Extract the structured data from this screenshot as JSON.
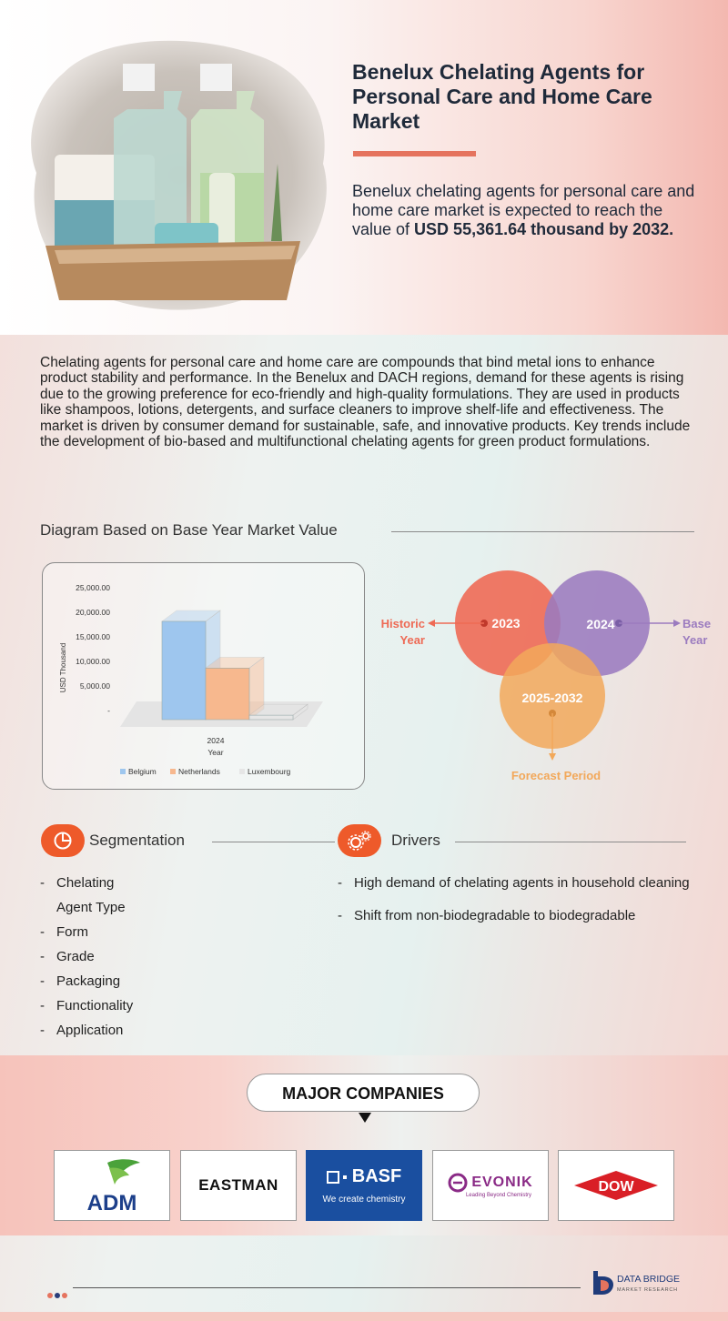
{
  "hero": {
    "title": "Benelux Chelating Agents for Personal Care and Home Care Market",
    "desc_prefix": "Benelux chelating agents for personal care and home care market is expected to reach the value of ",
    "desc_bold": "USD  55,361.64 thousand by 2032."
  },
  "intro": "Chelating agents for personal care and home care are compounds that bind metal ions to enhance product stability and performance. In the Benelux and DACH regions, demand for these agents is rising due to the growing preference for eco-friendly and high-quality formulations. They are used in products like shampoos, lotions, detergents, and surface cleaners to improve shelf-life and effectiveness. The market is driven by consumer demand for sustainable, safe, and innovative products. Key trends include the development of bio-based and multifunctional chelating agents for green product formulations.",
  "diagram_title": "Diagram Based on Base Year Market Value",
  "chart_data": {
    "type": "bar",
    "categories": [
      "2024"
    ],
    "series": [
      {
        "name": "Belgium",
        "values": [
          20000
        ],
        "color": "#9ec6ee"
      },
      {
        "name": "Netherlands",
        "values": [
          10500
        ],
        "color": "#f7b88e"
      },
      {
        "name": "Luxembourg",
        "values": [
          900
        ],
        "color": "#e6e6e6"
      }
    ],
    "xlabel": "Year",
    "ylabel": "USD Thousand",
    "yticks": [
      "25,000.00",
      "20,000.00",
      "15,000.00",
      "10,000.00",
      "5,000.00",
      "-"
    ],
    "ylim": [
      0,
      25000
    ],
    "legend_position": "bottom"
  },
  "venn": {
    "historic": "2023",
    "base": "2024",
    "forecast": "2025-2032",
    "label_historic_1": "Historic",
    "label_historic_2": "Year",
    "label_base_1": "Base",
    "label_base_2": "Year",
    "label_forecast": "Forecast Period",
    "colors": {
      "historic": "#ee6a55",
      "base": "#9b7bbf",
      "forecast": "#f2a85a"
    }
  },
  "segmentation": {
    "title": "Segmentation",
    "items": [
      "Chelating",
      "Agent Type",
      "Form",
      "Grade",
      "Packaging",
      "Functionality",
      "Application"
    ]
  },
  "drivers": {
    "title": "Drivers",
    "items": [
      "High demand of chelating agents in household cleaning",
      "Shift from non-biodegradable to biodegradable"
    ]
  },
  "companies": {
    "title": "MAJOR COMPANIES",
    "logos": [
      "ADM",
      "EASTMAN",
      "BASF",
      "We create chemistry",
      "EVONIK",
      "Leading Beyond Chemistry",
      "DOW"
    ]
  },
  "footer": {
    "brand_1": "DATA BRIDGE",
    "brand_2": "MARKET RESEARCH"
  }
}
